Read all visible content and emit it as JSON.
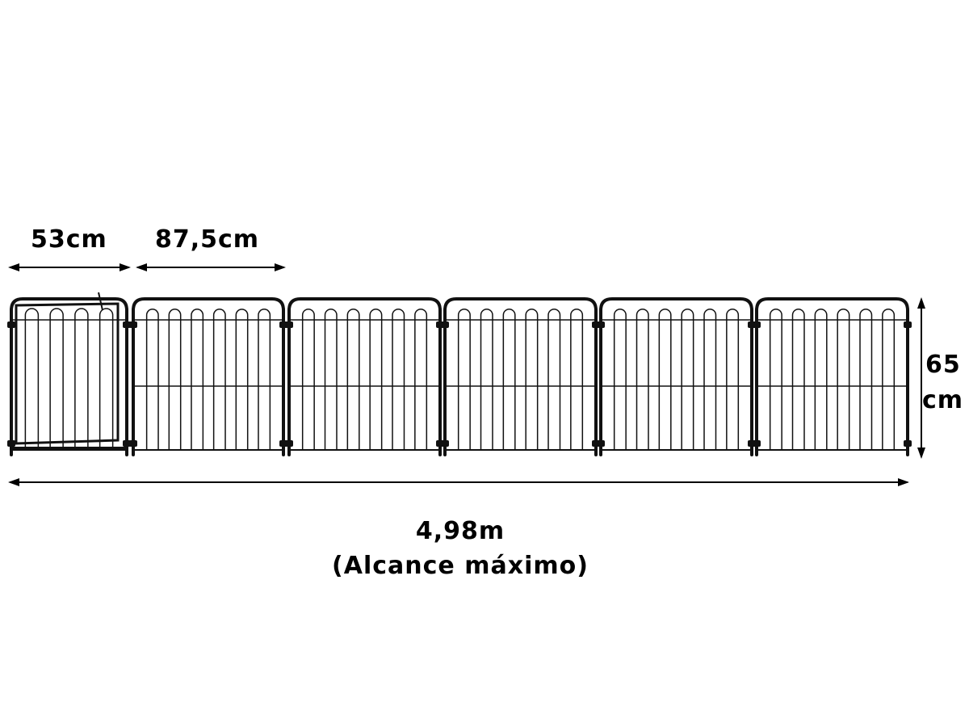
{
  "labels": {
    "gate_width": "53cm",
    "panel_width": "87,5cm",
    "height_value": "65",
    "height_unit": "cm",
    "total_length": "4,98m",
    "total_note": "(Alcance máximo)"
  },
  "fence": {
    "gate_count": 1,
    "panel_count": 5,
    "gate_loops": 4,
    "panel_loops": 6,
    "color": "#111111"
  }
}
